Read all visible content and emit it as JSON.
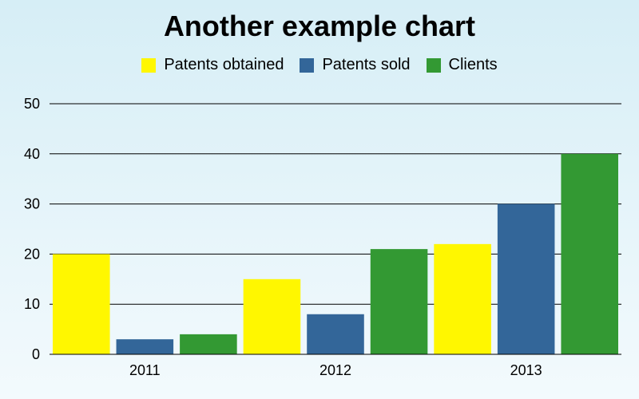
{
  "chart_data": {
    "type": "bar",
    "title": "Another example chart",
    "xlabel": "",
    "ylabel": "",
    "categories": [
      "2011",
      "2012",
      "2013"
    ],
    "series": [
      {
        "name": "Patents obtained",
        "color": "#fff700",
        "values": [
          20,
          15,
          22
        ]
      },
      {
        "name": "Patents sold",
        "color": "#336699",
        "values": [
          3,
          8,
          30
        ]
      },
      {
        "name": "Clients",
        "color": "#339933",
        "values": [
          4,
          21,
          40
        ]
      }
    ],
    "ylim": [
      0,
      50
    ],
    "yticks": [
      0,
      10,
      20,
      30,
      40,
      50
    ],
    "grid": true,
    "legend_position": "top"
  }
}
